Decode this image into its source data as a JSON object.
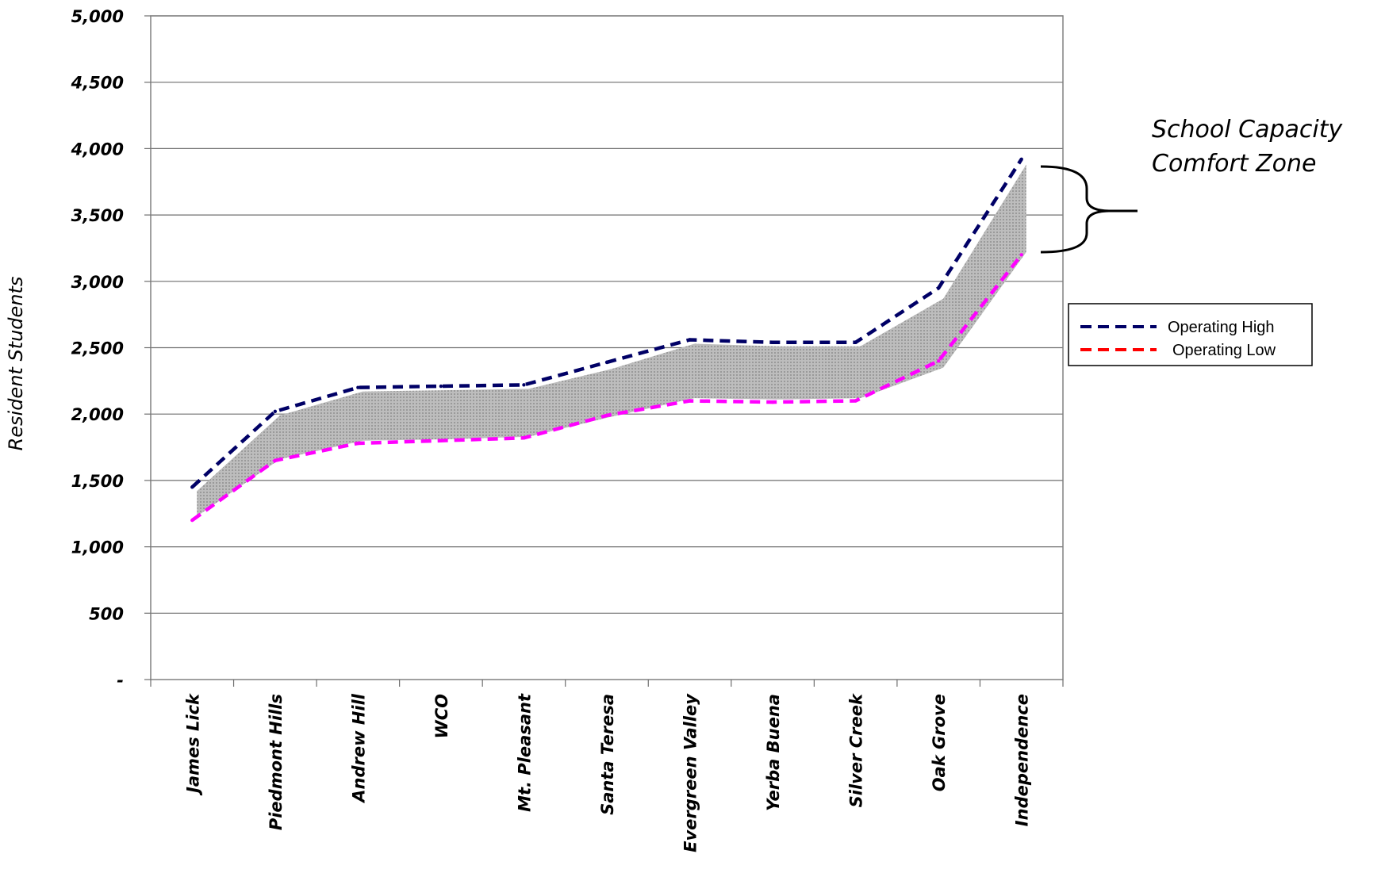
{
  "chart_data": {
    "type": "line",
    "title": "",
    "xlabel": "",
    "ylabel": "Resident Students",
    "ylim": [
      0,
      5000
    ],
    "yticks": [
      0,
      500,
      1000,
      1500,
      2000,
      2500,
      3000,
      3500,
      4000,
      4500,
      5000
    ],
    "ytick_labels": [
      "-",
      "500",
      "1,000",
      "1,500",
      "2,000",
      "2,500",
      "3,000",
      "3,500",
      "4,000",
      "4,500",
      "5,000"
    ],
    "categories": [
      "James Lick",
      "Piedmont Hills",
      "Andrew Hill",
      "WCO",
      "Mt. Pleasant",
      "Santa Teresa",
      "Evergreen Valley",
      "Yerba Buena",
      "Silver Creek",
      "Oak Grove",
      "Independence"
    ],
    "series": [
      {
        "name": "Operating High",
        "color": "#000066",
        "dash": true,
        "values": [
          1450,
          2020,
          2200,
          2210,
          2220,
          2390,
          2560,
          2540,
          2540,
          2950,
          3920
        ]
      },
      {
        "name": "Operating Low",
        "color": "#ff00ff",
        "legend_color": "#ff0000",
        "dash": true,
        "values": [
          1200,
          1650,
          1780,
          1800,
          1820,
          1990,
          2100,
          2090,
          2100,
          2400,
          3200
        ]
      }
    ],
    "band": {
      "fill": "#c0c0c0",
      "upper": [
        1420,
        1990,
        2170,
        2180,
        2190,
        2340,
        2530,
        2510,
        2510,
        2870,
        3880
      ],
      "lower": [
        1230,
        1660,
        1800,
        1810,
        1830,
        1980,
        2120,
        2110,
        2120,
        2350,
        3220
      ]
    },
    "grid": true,
    "legend": "right",
    "annotation": [
      "School Capacity",
      "Comfort Zone"
    ]
  }
}
